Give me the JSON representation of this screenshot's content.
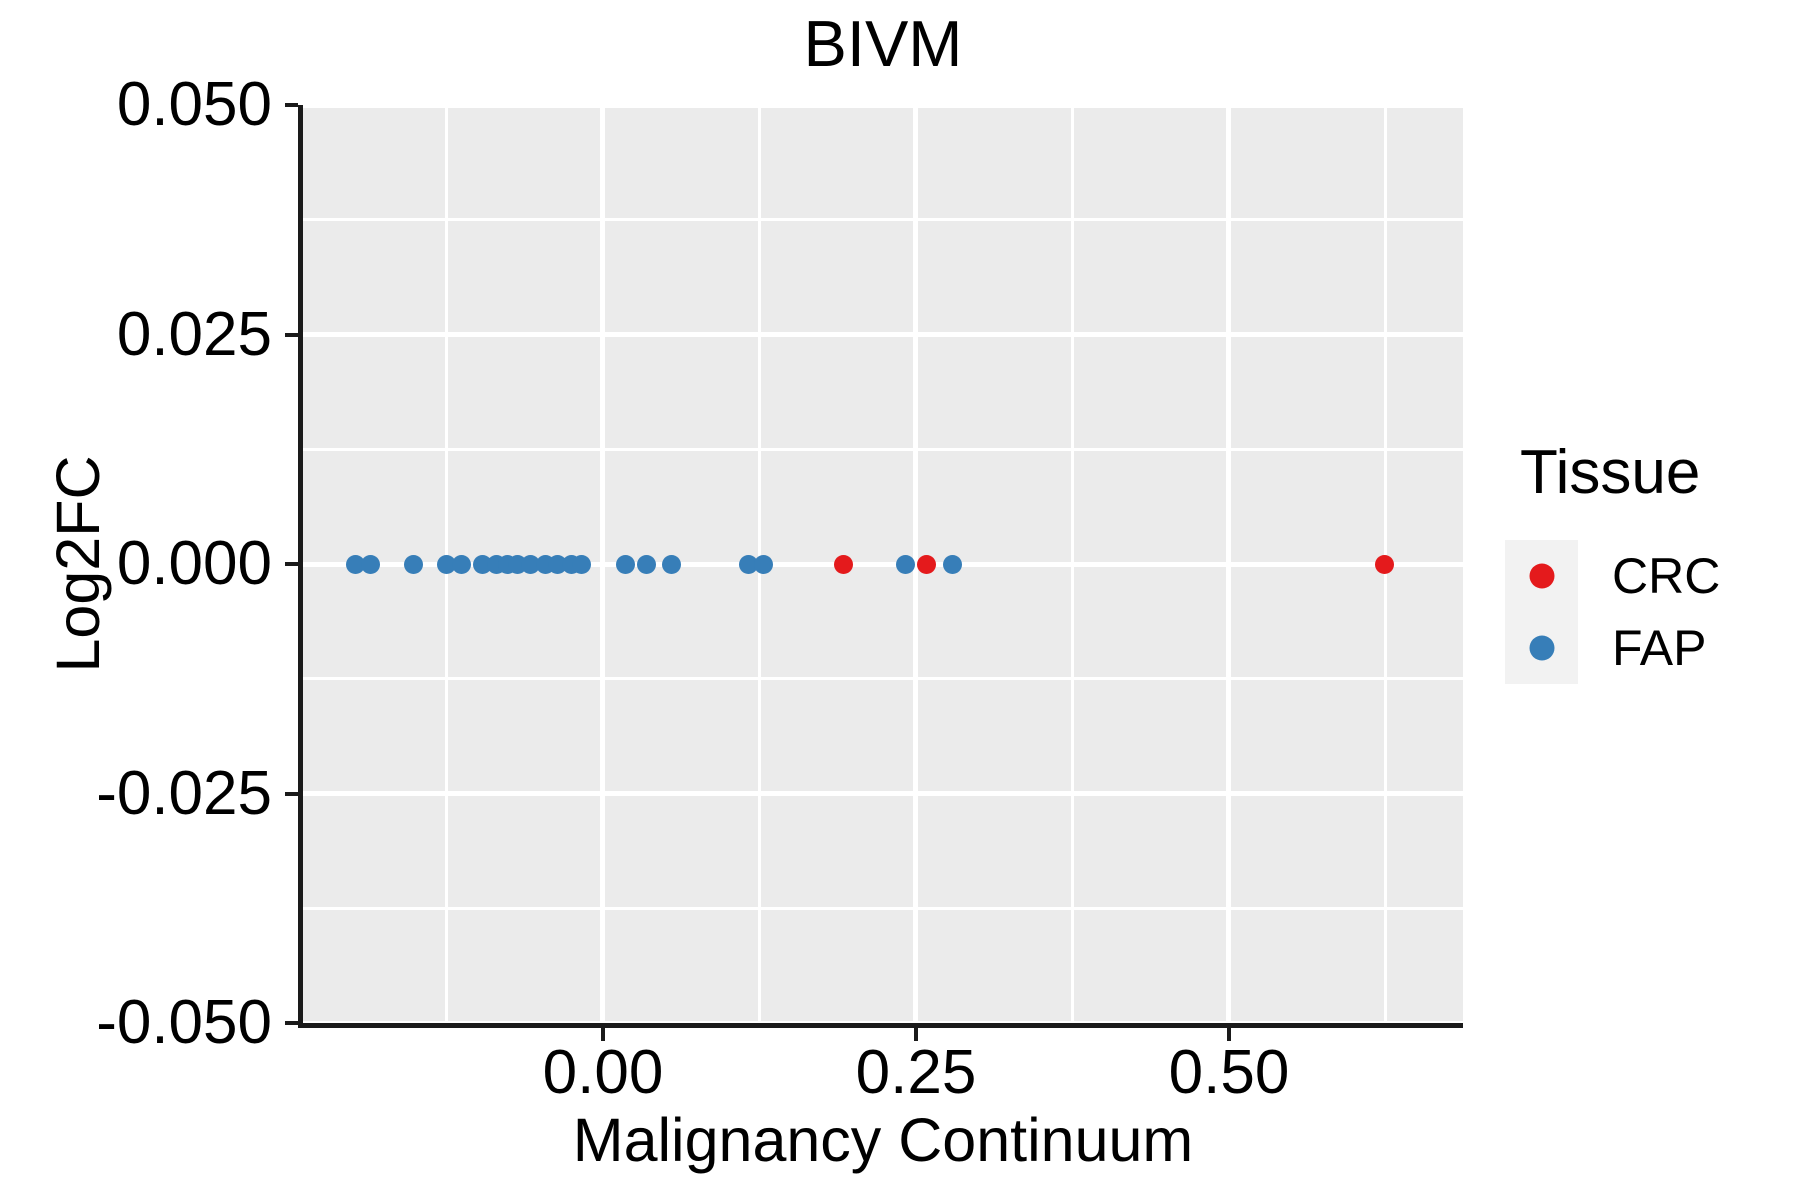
{
  "title": "BIVM",
  "colors": {
    "panel_background": "#EBEBEB",
    "gridline": "#FFFFFF",
    "axis": "#1A1A1A",
    "legend_key_background": "#F2F2F2",
    "crc": "#E41A1C",
    "fap": "#377EB8"
  },
  "legend": {
    "title": "Tissue",
    "position": "right"
  },
  "chart_data": {
    "type": "scatter",
    "title": "BIVM",
    "xlabel": "Malignancy Continuum",
    "ylabel": "Log2FC",
    "x_domain": [
      -0.2396,
      0.6869
    ],
    "y_domain": [
      -0.05,
      0.05
    ],
    "x_ticks": [
      {
        "value": 0.0,
        "label": "0.00"
      },
      {
        "value": 0.25,
        "label": "0.25"
      },
      {
        "value": 0.5,
        "label": "0.50"
      }
    ],
    "y_ticks": [
      {
        "value": 0.05,
        "label": "0.050"
      },
      {
        "value": 0.025,
        "label": "0.025"
      },
      {
        "value": 0.0,
        "label": "0.000"
      },
      {
        "value": -0.025,
        "label": "-0.025"
      },
      {
        "value": -0.05,
        "label": "-0.050"
      }
    ],
    "x_minor": [
      -0.125,
      0.125,
      0.375,
      0.625
    ],
    "y_minor": [
      0.0375,
      0.0125,
      -0.0125,
      -0.0375
    ],
    "grid": true,
    "legend_title": "Tissue",
    "legend_position": "right",
    "series": [
      {
        "name": "CRC",
        "color": "#E41A1C",
        "points": [
          [
            0.192,
            0
          ],
          [
            0.258,
            0
          ],
          [
            0.624,
            0
          ]
        ]
      },
      {
        "name": "FAP",
        "color": "#377EB8",
        "points": [
          [
            -0.198,
            0
          ],
          [
            -0.186,
            0
          ],
          [
            -0.151,
            0
          ],
          [
            -0.125,
            0
          ],
          [
            -0.113,
            0
          ],
          [
            -0.096,
            0
          ],
          [
            -0.085,
            0
          ],
          [
            -0.076,
            0
          ],
          [
            -0.068,
            0
          ],
          [
            -0.058,
            0
          ],
          [
            -0.046,
            0
          ],
          [
            -0.036,
            0
          ],
          [
            -0.025,
            0
          ],
          [
            -0.017,
            0
          ],
          [
            0.018,
            0
          ],
          [
            0.035,
            0
          ],
          [
            0.055,
            0
          ],
          [
            0.116,
            0
          ],
          [
            0.128,
            0
          ],
          [
            0.242,
            0
          ],
          [
            0.279,
            0
          ]
        ]
      }
    ]
  }
}
